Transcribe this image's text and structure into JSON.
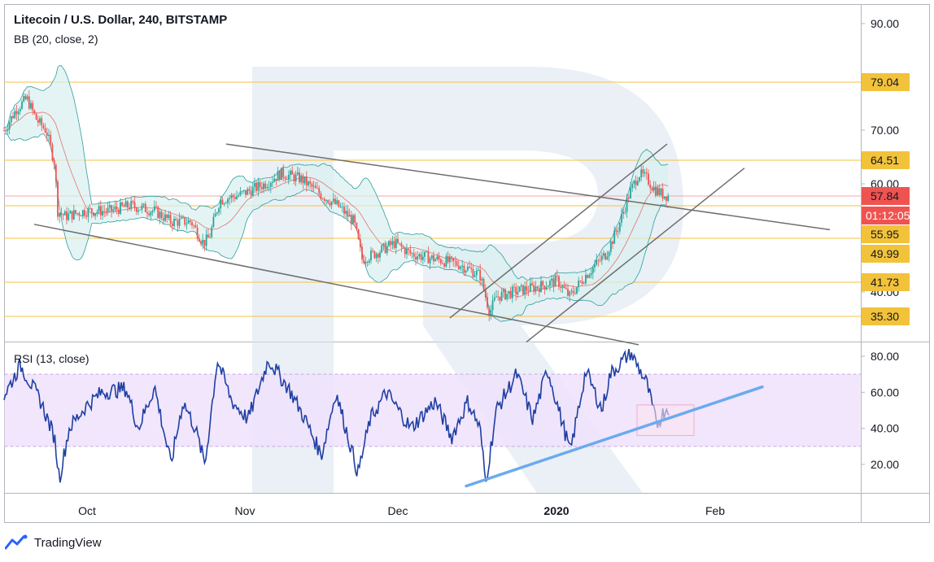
{
  "header": {
    "title": "Litecoin / U.S. Dollar, 240, BITSTAMP",
    "bb_indicator": "BB (20, close, 2)",
    "rsi_indicator": "RSI (13, close)"
  },
  "branding": {
    "logo_text": "TradingView"
  },
  "colors": {
    "candle_up": "#26a69a",
    "candle_down": "#ef5350",
    "bb_band": "#2e9e9e",
    "bb_fill": "#d8efef",
    "level_line": "#f5c242",
    "label_bg": "#f2c23a",
    "current_label_bg": "#ef5350",
    "rsi_line": "#1f3fa3",
    "rsi_band_fill": "#efe2fb",
    "rsi_trendline": "#6aaaf0",
    "trendline": "#6e6e6e",
    "watermark": "#d9e3ee"
  },
  "chart_data": [
    {
      "type": "line",
      "subtype": "candlestick",
      "title": "Litecoin / U.S. Dollar, 240, BITSTAMP",
      "ylim": [
        30,
        92
      ],
      "x_tick_labels": [
        "Oct",
        "Nov",
        "Dec",
        "2020",
        "Feb"
      ],
      "y_tick_labels": [
        "90.00",
        "70.00",
        "60.00",
        "40.00"
      ],
      "price_path": [
        {
          "t": 0,
          "v": 70
        },
        {
          "t": 15,
          "v": 74
        },
        {
          "t": 28,
          "v": 76
        },
        {
          "t": 40,
          "v": 72
        },
        {
          "t": 52,
          "v": 70
        },
        {
          "t": 62,
          "v": 64
        },
        {
          "t": 66,
          "v": 55
        },
        {
          "t": 75,
          "v": 54
        },
        {
          "t": 100,
          "v": 55
        },
        {
          "t": 130,
          "v": 55
        },
        {
          "t": 155,
          "v": 56
        },
        {
          "t": 185,
          "v": 55
        },
        {
          "t": 205,
          "v": 53
        },
        {
          "t": 230,
          "v": 53
        },
        {
          "t": 245,
          "v": 49
        },
        {
          "t": 252,
          "v": 50
        },
        {
          "t": 265,
          "v": 57
        },
        {
          "t": 290,
          "v": 58
        },
        {
          "t": 320,
          "v": 60
        },
        {
          "t": 340,
          "v": 62
        },
        {
          "t": 365,
          "v": 61
        },
        {
          "t": 390,
          "v": 58
        },
        {
          "t": 410,
          "v": 56
        },
        {
          "t": 430,
          "v": 53
        },
        {
          "t": 440,
          "v": 46
        },
        {
          "t": 455,
          "v": 47
        },
        {
          "t": 480,
          "v": 49
        },
        {
          "t": 500,
          "v": 47
        },
        {
          "t": 530,
          "v": 46
        },
        {
          "t": 560,
          "v": 45
        },
        {
          "t": 585,
          "v": 43
        },
        {
          "t": 597,
          "v": 36
        },
        {
          "t": 605,
          "v": 39
        },
        {
          "t": 630,
          "v": 40
        },
        {
          "t": 660,
          "v": 41
        },
        {
          "t": 680,
          "v": 42
        },
        {
          "t": 695,
          "v": 39
        },
        {
          "t": 715,
          "v": 43
        },
        {
          "t": 740,
          "v": 47
        },
        {
          "t": 755,
          "v": 52
        },
        {
          "t": 768,
          "v": 58
        },
        {
          "t": 780,
          "v": 62
        },
        {
          "t": 790,
          "v": 61
        },
        {
          "t": 800,
          "v": 59
        },
        {
          "t": 810,
          "v": 58
        },
        {
          "t": 818,
          "v": 57.8
        }
      ],
      "horizontal_levels": [
        {
          "value": 79.04,
          "label": "79.04"
        },
        {
          "value": 64.51,
          "label": "64.51"
        },
        {
          "value": 55.95,
          "label": "55.95"
        },
        {
          "value": 49.99,
          "label": "49.99"
        },
        {
          "value": 41.73,
          "label": "41.73"
        },
        {
          "value": 35.3,
          "label": "35.30"
        }
      ],
      "current_price": {
        "value": 57.84,
        "label": "57.84",
        "countdown": "01:12:05"
      },
      "trendlines": [
        {
          "name": "descending-channel-upper",
          "from": [
            273,
            67.5
          ],
          "to": [
            1015,
            51.5
          ]
        },
        {
          "name": "descending-channel-lower",
          "from": [
            37,
            52.5
          ],
          "to": [
            780,
            30
          ]
        },
        {
          "name": "ascending-channel-upper",
          "from": [
            548,
            35
          ],
          "to": [
            815,
            67.5
          ]
        },
        {
          "name": "ascending-channel-lower",
          "from": [
            642,
            30.5
          ],
          "to": [
            910,
            63
          ]
        }
      ]
    },
    {
      "type": "line",
      "title": "RSI (13, close)",
      "ylim": [
        5,
        85
      ],
      "band": [
        30,
        70
      ],
      "y_tick_labels": [
        "80.00",
        "60.00",
        "40.00",
        "20.00"
      ],
      "rsi_path": [
        {
          "t": 0,
          "v": 58
        },
        {
          "t": 20,
          "v": 75
        },
        {
          "t": 45,
          "v": 55
        },
        {
          "t": 62,
          "v": 35
        },
        {
          "t": 68,
          "v": 12
        },
        {
          "t": 80,
          "v": 40
        },
        {
          "t": 100,
          "v": 52
        },
        {
          "t": 120,
          "v": 60
        },
        {
          "t": 150,
          "v": 62
        },
        {
          "t": 165,
          "v": 40
        },
        {
          "t": 185,
          "v": 63
        },
        {
          "t": 205,
          "v": 20
        },
        {
          "t": 220,
          "v": 55
        },
        {
          "t": 235,
          "v": 40
        },
        {
          "t": 247,
          "v": 20
        },
        {
          "t": 262,
          "v": 78
        },
        {
          "t": 280,
          "v": 55
        },
        {
          "t": 300,
          "v": 45
        },
        {
          "t": 325,
          "v": 78
        },
        {
          "t": 350,
          "v": 62
        },
        {
          "t": 370,
          "v": 45
        },
        {
          "t": 390,
          "v": 25
        },
        {
          "t": 408,
          "v": 60
        },
        {
          "t": 435,
          "v": 15
        },
        {
          "t": 450,
          "v": 45
        },
        {
          "t": 470,
          "v": 60
        },
        {
          "t": 500,
          "v": 40
        },
        {
          "t": 530,
          "v": 55
        },
        {
          "t": 550,
          "v": 35
        },
        {
          "t": 570,
          "v": 55
        },
        {
          "t": 585,
          "v": 40
        },
        {
          "t": 592,
          "v": 10
        },
        {
          "t": 605,
          "v": 50
        },
        {
          "t": 630,
          "v": 70
        },
        {
          "t": 650,
          "v": 45
        },
        {
          "t": 668,
          "v": 73
        },
        {
          "t": 685,
          "v": 45
        },
        {
          "t": 696,
          "v": 27
        },
        {
          "t": 715,
          "v": 72
        },
        {
          "t": 735,
          "v": 50
        },
        {
          "t": 745,
          "v": 70
        },
        {
          "t": 770,
          "v": 82
        },
        {
          "t": 790,
          "v": 65
        },
        {
          "t": 802,
          "v": 42
        },
        {
          "t": 812,
          "v": 50
        },
        {
          "t": 818,
          "v": 52
        }
      ],
      "trendline": {
        "from": [
          568,
          8
        ],
        "to": [
          932,
          63
        ]
      },
      "highlight_box": {
        "x_range": [
          778,
          848
        ],
        "y_range": [
          36,
          53
        ]
      }
    }
  ]
}
